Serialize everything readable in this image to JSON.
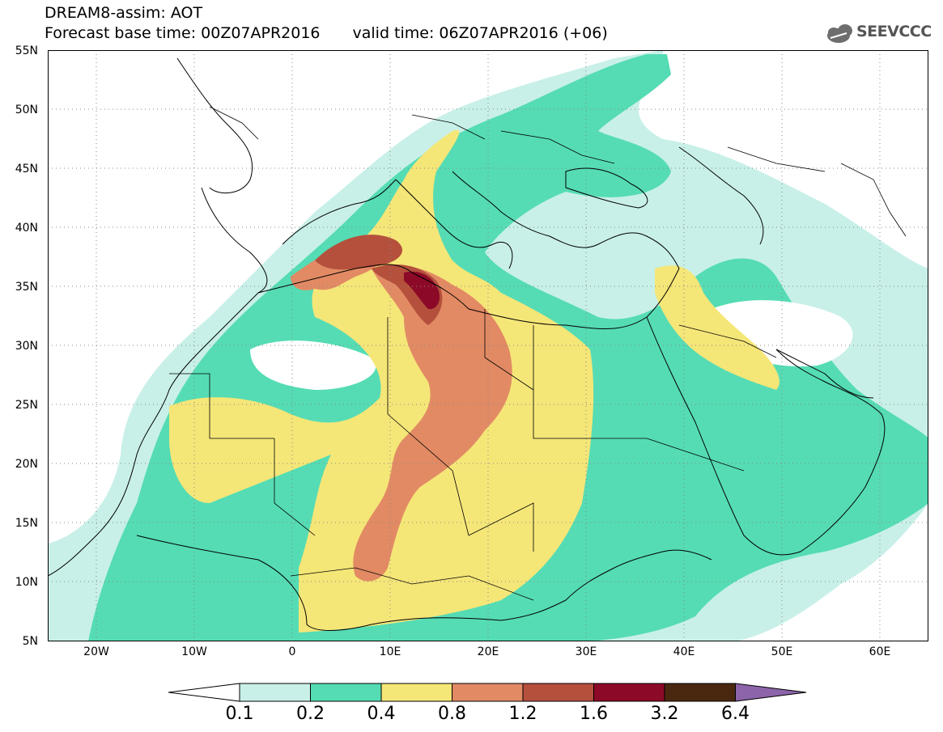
{
  "header": {
    "title_line1": "DREAM8-assim: AOT",
    "base_time": "Forecast base time: 00Z07APR2016",
    "valid_time": "valid time: 06Z07APR2016 (+06)",
    "logo_text": "SEEVCCC",
    "logo_icon": "cloud-icon"
  },
  "map": {
    "lon_range": [
      -25,
      65
    ],
    "lat_range": [
      5,
      55
    ],
    "lat_labels": [
      "55N",
      "50N",
      "45N",
      "40N",
      "35N",
      "30N",
      "25N",
      "20N",
      "15N",
      "10N",
      "5N"
    ],
    "lon_labels": [
      "20W",
      "10W",
      "0",
      "10E",
      "20E",
      "30E",
      "40E",
      "50E",
      "60E"
    ],
    "gridlines": "dotted"
  },
  "colorbar": {
    "levels": [
      "0.1",
      "0.2",
      "0.4",
      "0.8",
      "1.2",
      "1.6",
      "3.2",
      "6.4"
    ],
    "colors": [
      "#ffffff",
      "#c8f0e8",
      "#55dcb4",
      "#f5e678",
      "#e28a64",
      "#b4503c",
      "#8c0a28",
      "#4a2810",
      "#8c64aa"
    ]
  }
}
